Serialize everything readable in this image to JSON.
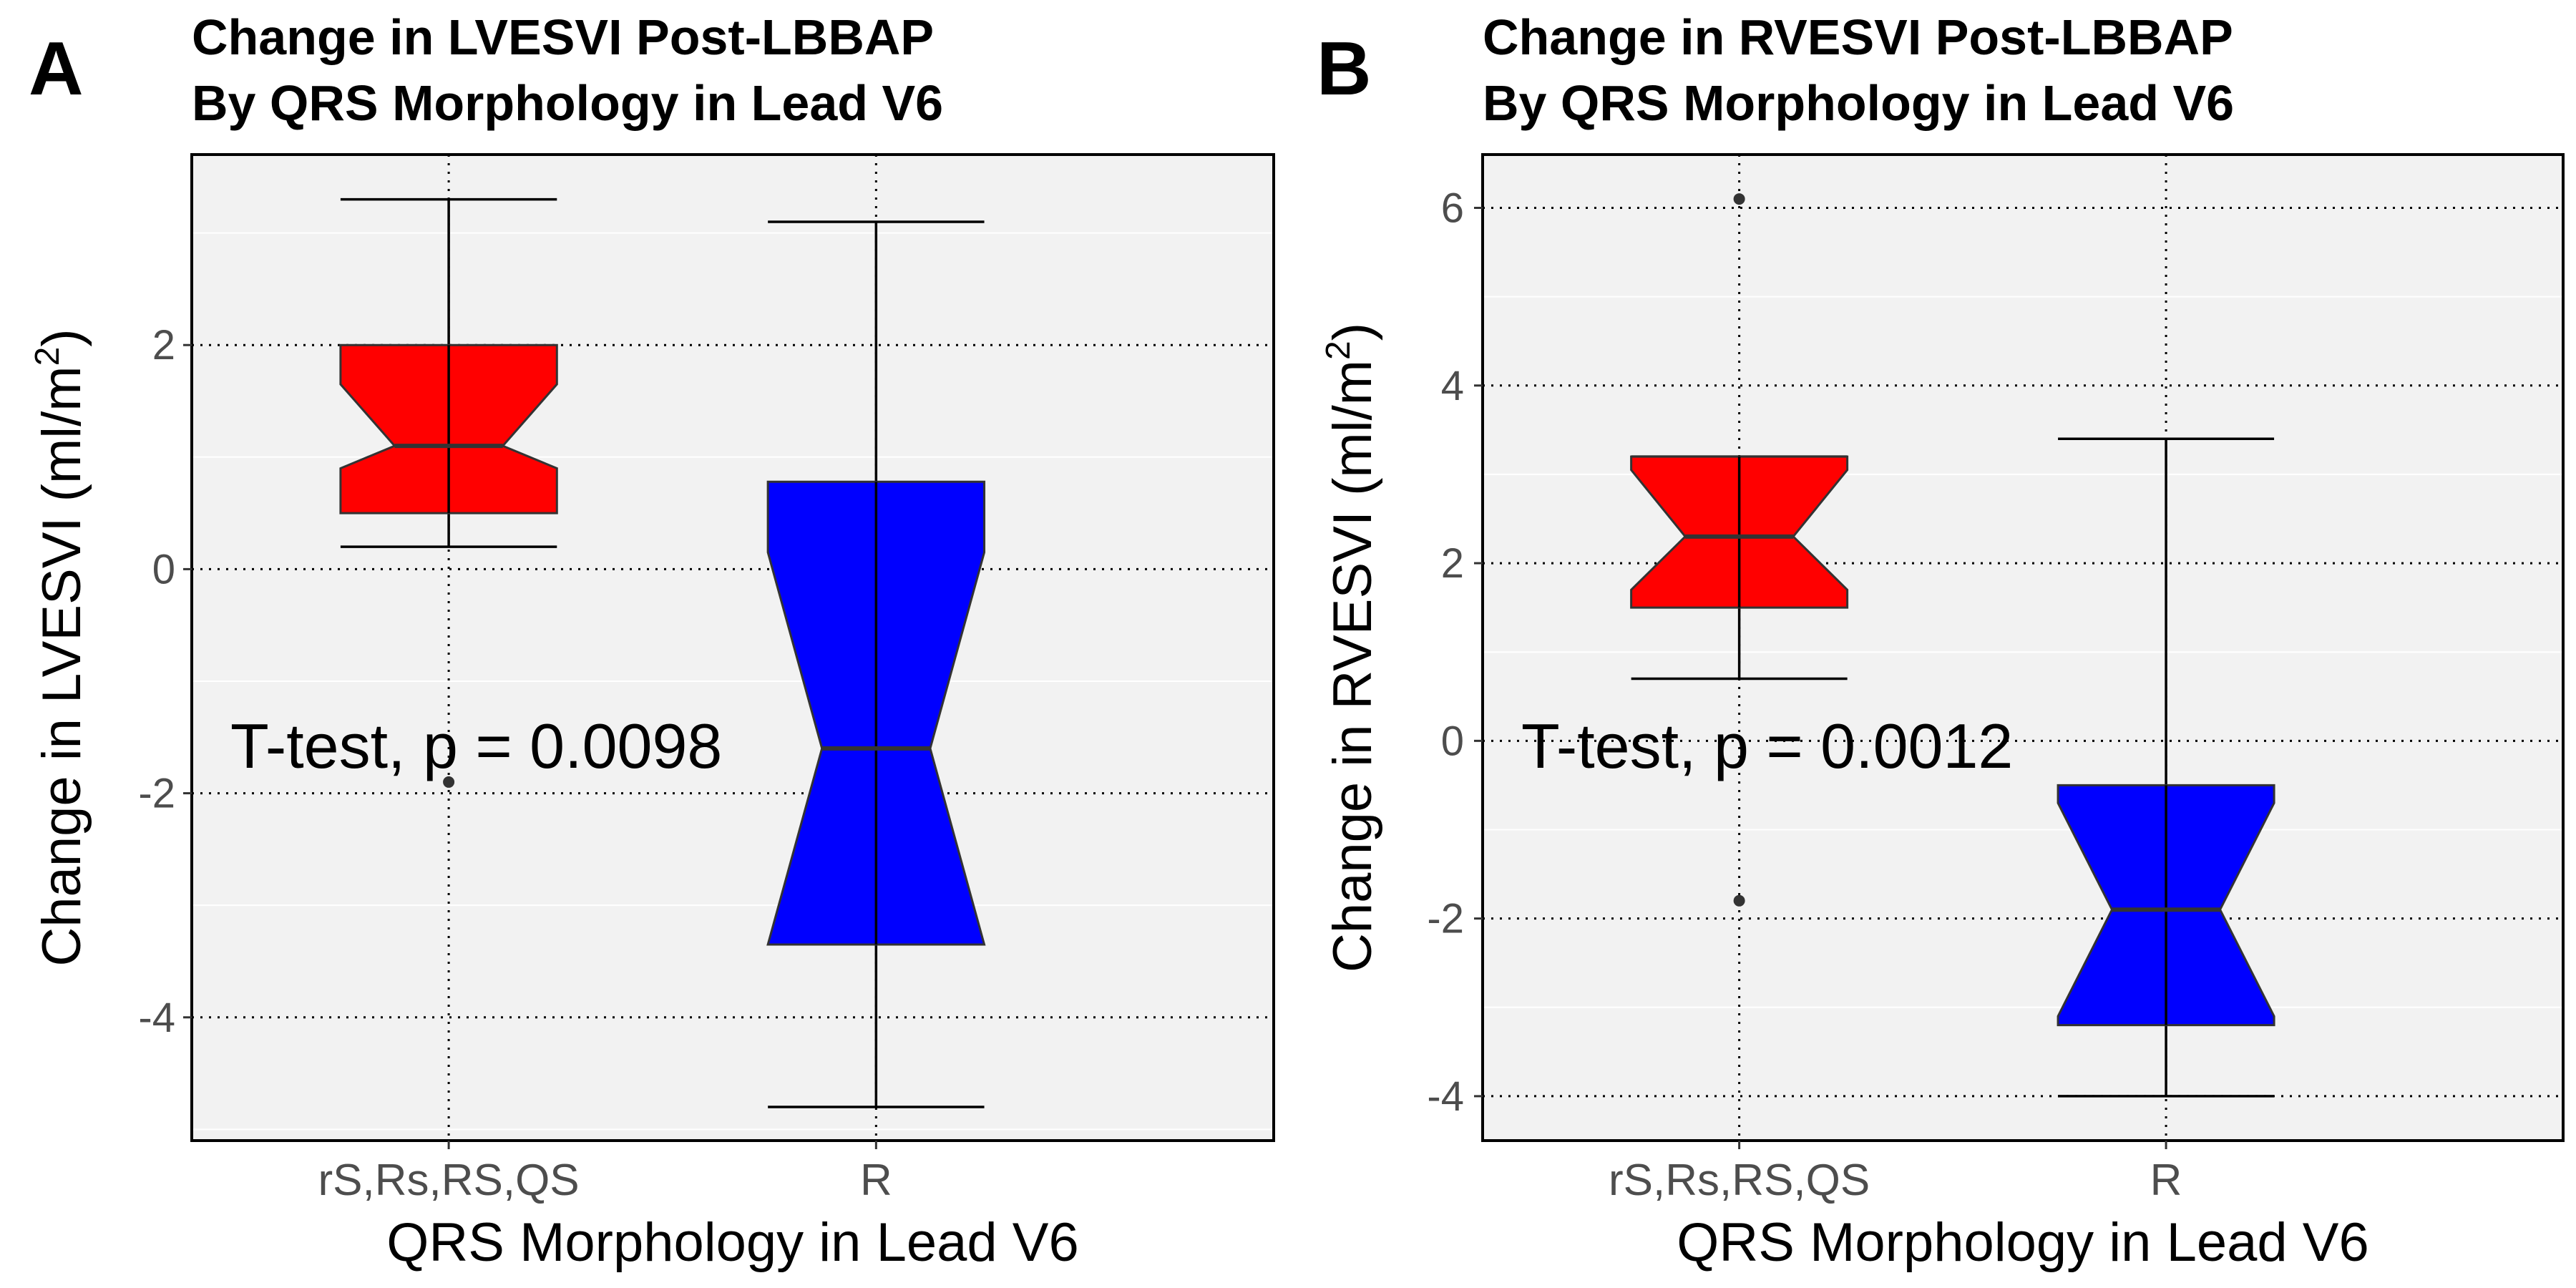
{
  "chart_data": [
    {
      "type": "boxplot",
      "panel_label": "A",
      "title_lines": [
        "Change in LVESVI Post-LBBAP",
        "By QRS Morphology in Lead V6"
      ],
      "xlabel": "QRS Morphology in Lead V6",
      "ylabel": "Change in LVESVI",
      "ylabel_unit_prefix": "(ml/m",
      "ylabel_unit_sup": "2",
      "ylabel_unit_suffix": ")",
      "ylim": [
        -5.1,
        3.7
      ],
      "yticks": [
        -4,
        -2,
        0,
        2
      ],
      "categories": [
        "rS,Rs,RS,QS",
        "R"
      ],
      "boxes": [
        {
          "category": "rS,Rs,RS,QS",
          "min": 0.2,
          "q1": 0.5,
          "median": 1.1,
          "q3": 2.0,
          "max": 3.3,
          "notch_low": 0.9,
          "notch_high": 1.65,
          "outliers": [
            -1.9
          ],
          "color": "#ff0000"
        },
        {
          "category": "R",
          "min": -4.8,
          "q1": -3.35,
          "median": -1.6,
          "q3": 0.78,
          "max": 3.1,
          "notch_low": -3.35,
          "notch_high": 0.15,
          "outliers": [],
          "color": "#0000ff"
        }
      ],
      "annotation": "T-test, p = 0.0098",
      "grid": true
    },
    {
      "type": "boxplot",
      "panel_label": "B",
      "title_lines": [
        "Change in RVESVI Post-LBBAP",
        "By QRS Morphology in Lead V6"
      ],
      "xlabel": "QRS Morphology in Lead V6",
      "ylabel": "Change in RVESVI",
      "ylabel_unit_prefix": "(ml/m",
      "ylabel_unit_sup": "2",
      "ylabel_unit_suffix": ")",
      "ylim": [
        -4.5,
        6.6
      ],
      "yticks": [
        -4,
        -2,
        0,
        2,
        4,
        6
      ],
      "categories": [
        "rS,Rs,RS,QS",
        "R"
      ],
      "boxes": [
        {
          "category": "rS,Rs,RS,QS",
          "min": 0.7,
          "q1": 1.5,
          "median": 2.3,
          "q3": 3.2,
          "max": 3.2,
          "notch_low": 1.7,
          "notch_high": 3.05,
          "outliers": [
            6.1,
            -1.8
          ],
          "color": "#ff0000"
        },
        {
          "category": "R",
          "min": -4.0,
          "q1": -3.2,
          "median": -1.9,
          "q3": -0.5,
          "max": 3.4,
          "notch_low": -3.1,
          "notch_high": -0.7,
          "outliers": [],
          "color": "#0000ff"
        }
      ],
      "annotation": "T-test, p = 0.0012",
      "grid": true
    }
  ]
}
